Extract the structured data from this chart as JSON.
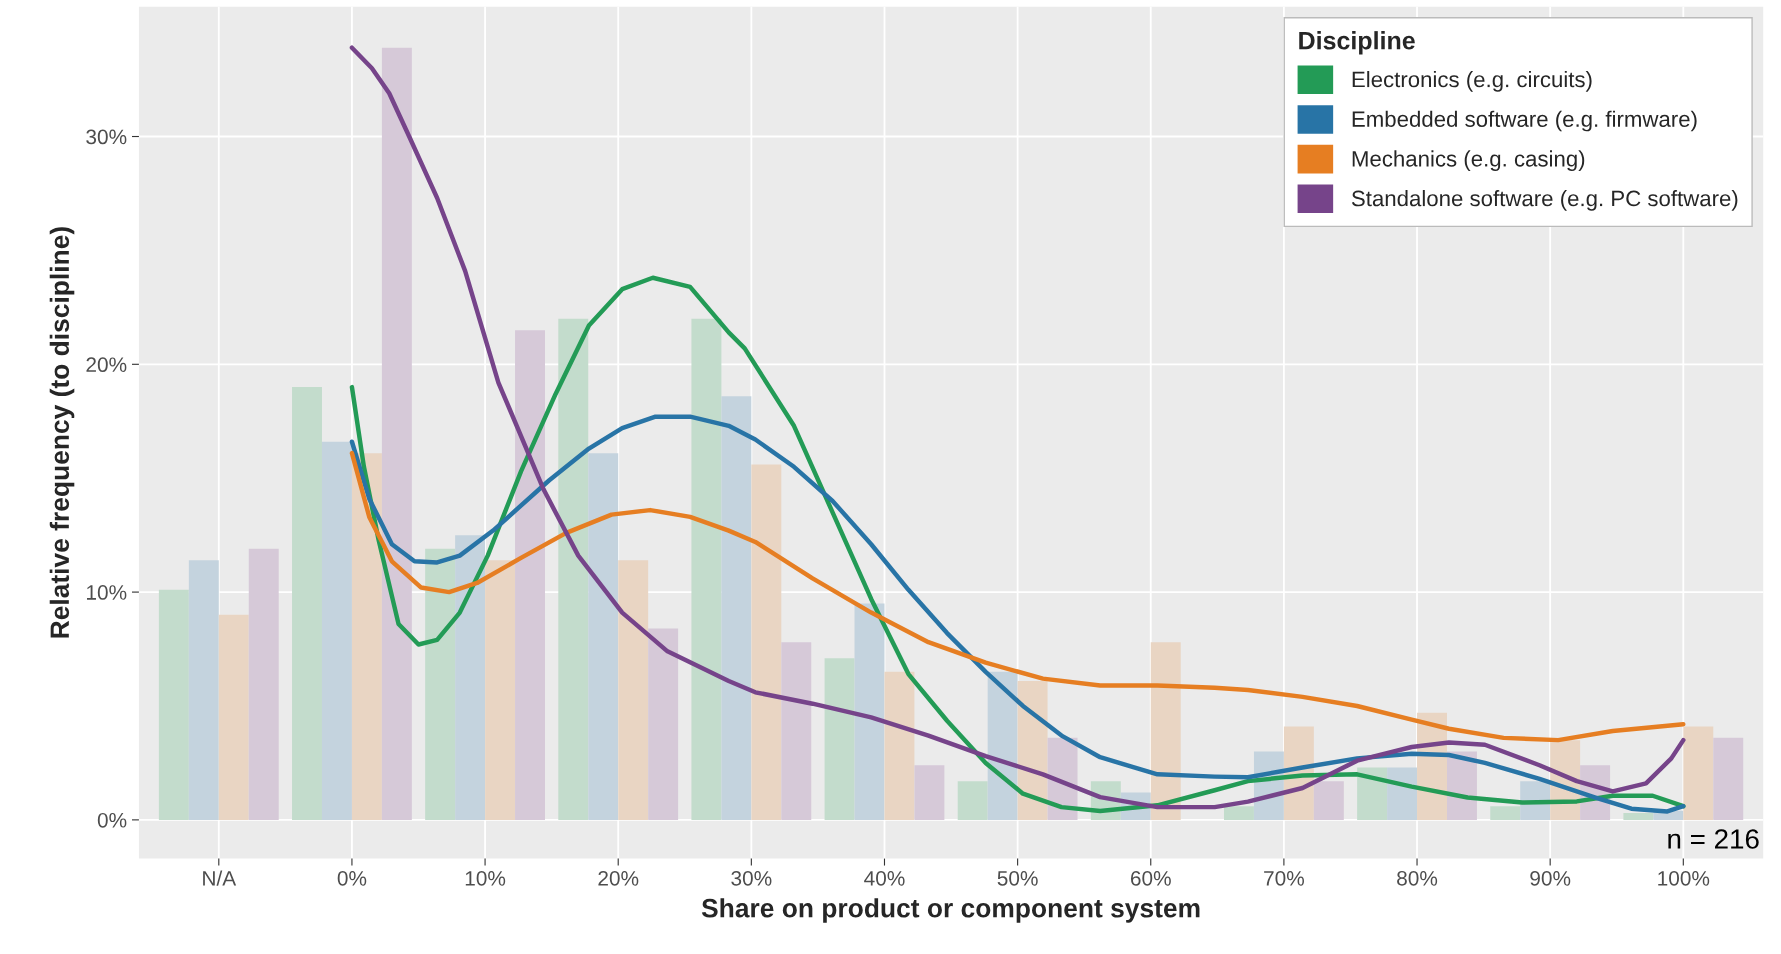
{
  "chart_data": {
    "type": "bar",
    "xlabel": "Share on product or component system",
    "ylabel": "Relative frequency (to discipline)",
    "legend_title": "Discipline",
    "legend": "top right",
    "grid": true,
    "x": [
      -10,
      0,
      10,
      20,
      30,
      40,
      50,
      60,
      70,
      80,
      90,
      100
    ],
    "xlim": [
      -16,
      106
    ],
    "xticks": [
      {
        "value": -10,
        "label": "N/A"
      },
      {
        "value": 0,
        "label": "0%"
      },
      {
        "value": 10,
        "label": "10%"
      },
      {
        "value": 20,
        "label": "20%"
      },
      {
        "value": 30,
        "label": "30%"
      },
      {
        "value": 40,
        "label": "40%"
      },
      {
        "value": 50,
        "label": "50%"
      },
      {
        "value": 60,
        "label": "60%"
      },
      {
        "value": 70,
        "label": "70%"
      },
      {
        "value": 80,
        "label": "80%"
      },
      {
        "value": 90,
        "label": "90%"
      },
      {
        "value": 100,
        "label": "100%"
      }
    ],
    "ylim": [
      -1.7,
      35.7
    ],
    "yticks": [
      {
        "value": 0,
        "label": "0%"
      },
      {
        "value": 10,
        "label": "10%"
      },
      {
        "value": 20,
        "label": "20%"
      },
      {
        "value": 30,
        "label": "30%"
      }
    ],
    "annotations": [
      "n = 216"
    ],
    "series": [
      {
        "color": "#c3dccc",
        "values": [
          10.1,
          19.0,
          11.9,
          22.0,
          22.0,
          7.1,
          1.7,
          1.7,
          0.6,
          2.3,
          0.6,
          0.3
        ]
      },
      {
        "color": "#c4d3de",
        "values": [
          11.4,
          16.6,
          12.5,
          16.1,
          18.6,
          9.5,
          6.5,
          1.2,
          3.0,
          2.3,
          1.7,
          0.4
        ]
      },
      {
        "color": "#e9d5c3",
        "values": [
          9.0,
          16.1,
          11.4,
          11.4,
          15.6,
          6.5,
          6.1,
          7.8,
          4.1,
          4.7,
          3.5,
          4.1
        ]
      },
      {
        "color": "#d6c9d8",
        "values": [
          11.9,
          33.9,
          21.5,
          8.4,
          7.8,
          2.4,
          3.6,
          0,
          1.7,
          3.0,
          2.4,
          3.6
        ]
      },
      {
        "type": "line",
        "name": "Electronics (e.g. circuits)",
        "color": "#239b56",
        "x": [
          0,
          0.9,
          2.0,
          3.5,
          5.0,
          6.4,
          8.1,
          10.2,
          12.7,
          15.3,
          17.8,
          20.3,
          22.6,
          25.4,
          28.3,
          29.5,
          33.2,
          36.1,
          39.0,
          41.8,
          44.7,
          47.6,
          50.4,
          53.3,
          56.2,
          60.5,
          64.8,
          67.3,
          71.4,
          75.5,
          79.6,
          83.8,
          87.9,
          92.0,
          94.7,
          97.7,
          100
        ],
        "values": [
          19.0,
          15.5,
          12.3,
          8.6,
          7.7,
          7.9,
          9.1,
          11.6,
          15.3,
          18.7,
          21.7,
          23.3,
          23.8,
          23.4,
          21.4,
          20.7,
          17.3,
          13.5,
          9.7,
          6.4,
          4.35,
          2.5,
          1.15,
          0.56,
          0.39,
          0.64,
          1.3,
          1.7,
          1.95,
          2.0,
          1.46,
          0.98,
          0.76,
          0.81,
          1.06,
          1.06,
          0.6
        ]
      },
      {
        "type": "line",
        "name": "Embedded software (e.g. firmware)",
        "color": "#2874a6",
        "x": [
          0,
          1.3,
          3.0,
          4.7,
          6.4,
          8.1,
          10.6,
          14.8,
          17.8,
          20.3,
          22.8,
          25.4,
          28.3,
          30.3,
          33.2,
          36.1,
          39.0,
          41.8,
          44.7,
          47.6,
          50.4,
          53.3,
          56.2,
          60.5,
          64.8,
          67.3,
          71.4,
          75.5,
          79.6,
          82.4,
          85.1,
          89.2,
          93.4,
          96.1,
          98.8,
          100
        ],
        "values": [
          16.6,
          14.1,
          12.1,
          11.35,
          11.3,
          11.6,
          12.7,
          14.9,
          16.3,
          17.2,
          17.7,
          17.7,
          17.3,
          16.7,
          15.5,
          14.0,
          12.1,
          10.1,
          8.2,
          6.5,
          5.0,
          3.7,
          2.75,
          2.0,
          1.9,
          1.87,
          2.3,
          2.7,
          2.9,
          2.85,
          2.5,
          1.8,
          0.98,
          0.49,
          0.37,
          0.6
        ]
      },
      {
        "type": "line",
        "name": "Mechanics (e.g. casing)",
        "color": "#e67e22",
        "x": [
          0,
          1.3,
          3.0,
          5.2,
          7.3,
          9.4,
          12.7,
          16.1,
          19.5,
          22.4,
          25.4,
          28.3,
          30.3,
          34.6,
          39.0,
          43.3,
          47.6,
          51.9,
          56.2,
          60.5,
          64.8,
          67.3,
          71.4,
          75.5,
          79.6,
          82.4,
          86.5,
          90.6,
          94.7,
          100
        ],
        "values": [
          16.1,
          13.3,
          11.35,
          10.2,
          10.0,
          10.4,
          11.5,
          12.6,
          13.4,
          13.6,
          13.3,
          12.7,
          12.2,
          10.6,
          9.1,
          7.8,
          6.9,
          6.2,
          5.9,
          5.9,
          5.8,
          5.7,
          5.4,
          5.0,
          4.4,
          4.0,
          3.6,
          3.5,
          3.9,
          4.2
        ]
      },
      {
        "type": "line",
        "name": "Standalone software (e.g. PC software)",
        "color": "#76448a",
        "x": [
          0,
          1.5,
          2.8,
          4.3,
          6.4,
          8.5,
          11.0,
          14.4,
          17.0,
          20.3,
          23.7,
          28.3,
          30.3,
          34.6,
          39.0,
          43.3,
          47.6,
          51.9,
          56.2,
          60.5,
          64.8,
          67.3,
          71.4,
          75.5,
          79.6,
          82.4,
          85.1,
          89.2,
          92.0,
          94.7,
          97.2,
          99.1,
          100
        ],
        "values": [
          33.9,
          33.0,
          31.9,
          30.0,
          27.3,
          24.1,
          19.2,
          14.5,
          11.6,
          9.1,
          7.4,
          6.1,
          5.6,
          5.1,
          4.5,
          3.7,
          2.8,
          2.0,
          1.0,
          0.56,
          0.56,
          0.8,
          1.4,
          2.6,
          3.2,
          3.4,
          3.3,
          2.4,
          1.7,
          1.25,
          1.6,
          2.7,
          3.5
        ]
      }
    ]
  }
}
